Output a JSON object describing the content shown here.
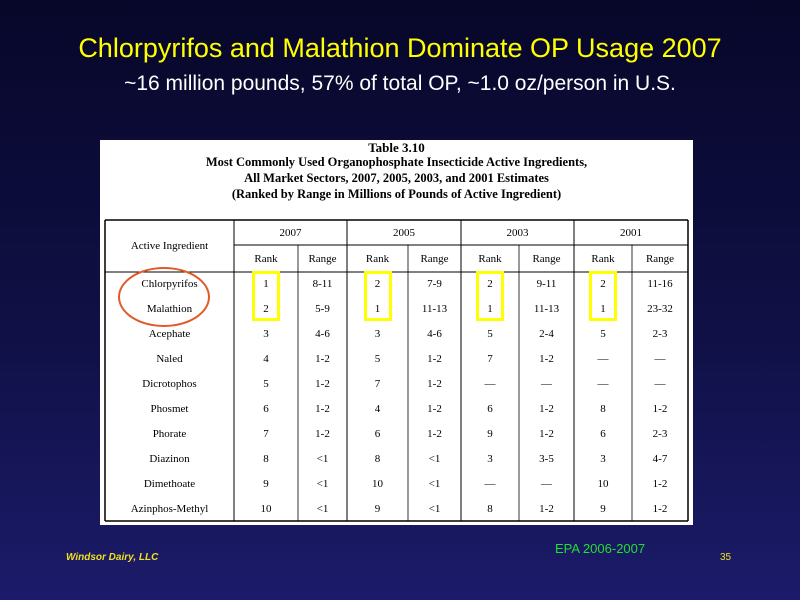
{
  "slide": {
    "title": "Chlorpyrifos and Malathion Dominate OP Usage 2007",
    "subtitle": "~16 million pounds,  57% of total OP, ~1.0 oz/person in U.S.",
    "footer_left": "Windsor Dairy, LLC",
    "source": "EPA 2006-2007",
    "page_number": "35"
  },
  "table": {
    "caption": [
      "Table 3.10",
      "Most Commonly Used Organophosphate Insecticide Active Ingredients,",
      "All Market Sectors, 2007, 2005, 2003, and 2001 Estimates",
      "(Ranked by Range in Millions of Pounds of Active Ingredient)"
    ],
    "first_header": "Active Ingredient",
    "years": [
      "2007",
      "2005",
      "2003",
      "2001"
    ],
    "subheaders": [
      "Rank",
      "Range"
    ],
    "rows": [
      {
        "name": "Chlorpyrifos",
        "cells": [
          "1",
          "8-11",
          "2",
          "7-9",
          "2",
          "9-11",
          "2",
          "11-16"
        ]
      },
      {
        "name": "Malathion",
        "cells": [
          "2",
          "5-9",
          "1",
          "11-13",
          "1",
          "11-13",
          "1",
          "23-32"
        ]
      },
      {
        "name": "Acephate",
        "cells": [
          "3",
          "4-6",
          "3",
          "4-6",
          "5",
          "2-4",
          "5",
          "2-3"
        ]
      },
      {
        "name": "Naled",
        "cells": [
          "4",
          "1-2",
          "5",
          "1-2",
          "7",
          "1-2",
          "—",
          "—"
        ]
      },
      {
        "name": "Dicrotophos",
        "cells": [
          "5",
          "1-2",
          "7",
          "1-2",
          "—",
          "—",
          "—",
          "—"
        ]
      },
      {
        "name": "Phosmet",
        "cells": [
          "6",
          "1-2",
          "4",
          "1-2",
          "6",
          "1-2",
          "8",
          "1-2"
        ]
      },
      {
        "name": "Phorate",
        "cells": [
          "7",
          "1-2",
          "6",
          "1-2",
          "9",
          "1-2",
          "6",
          "2-3"
        ]
      },
      {
        "name": "Diazinon",
        "cells": [
          "8",
          "<1",
          "8",
          "<1",
          "3",
          "3-5",
          "3",
          "4-7"
        ]
      },
      {
        "name": "Dimethoate",
        "cells": [
          "9",
          "<1",
          "10",
          "<1",
          "—",
          "—",
          "10",
          "1-2"
        ]
      },
      {
        "name": "Azinphos-Methyl",
        "cells": [
          "10",
          "<1",
          "9",
          "<1",
          "8",
          "1-2",
          "9",
          "1-2"
        ]
      }
    ]
  },
  "colors": {
    "title": "#ffff00",
    "subtitle": "#ffffff",
    "highlight_box": "#ffff00",
    "highlight_ellipse": "#e05a2a",
    "source_text": "#22dd33"
  }
}
